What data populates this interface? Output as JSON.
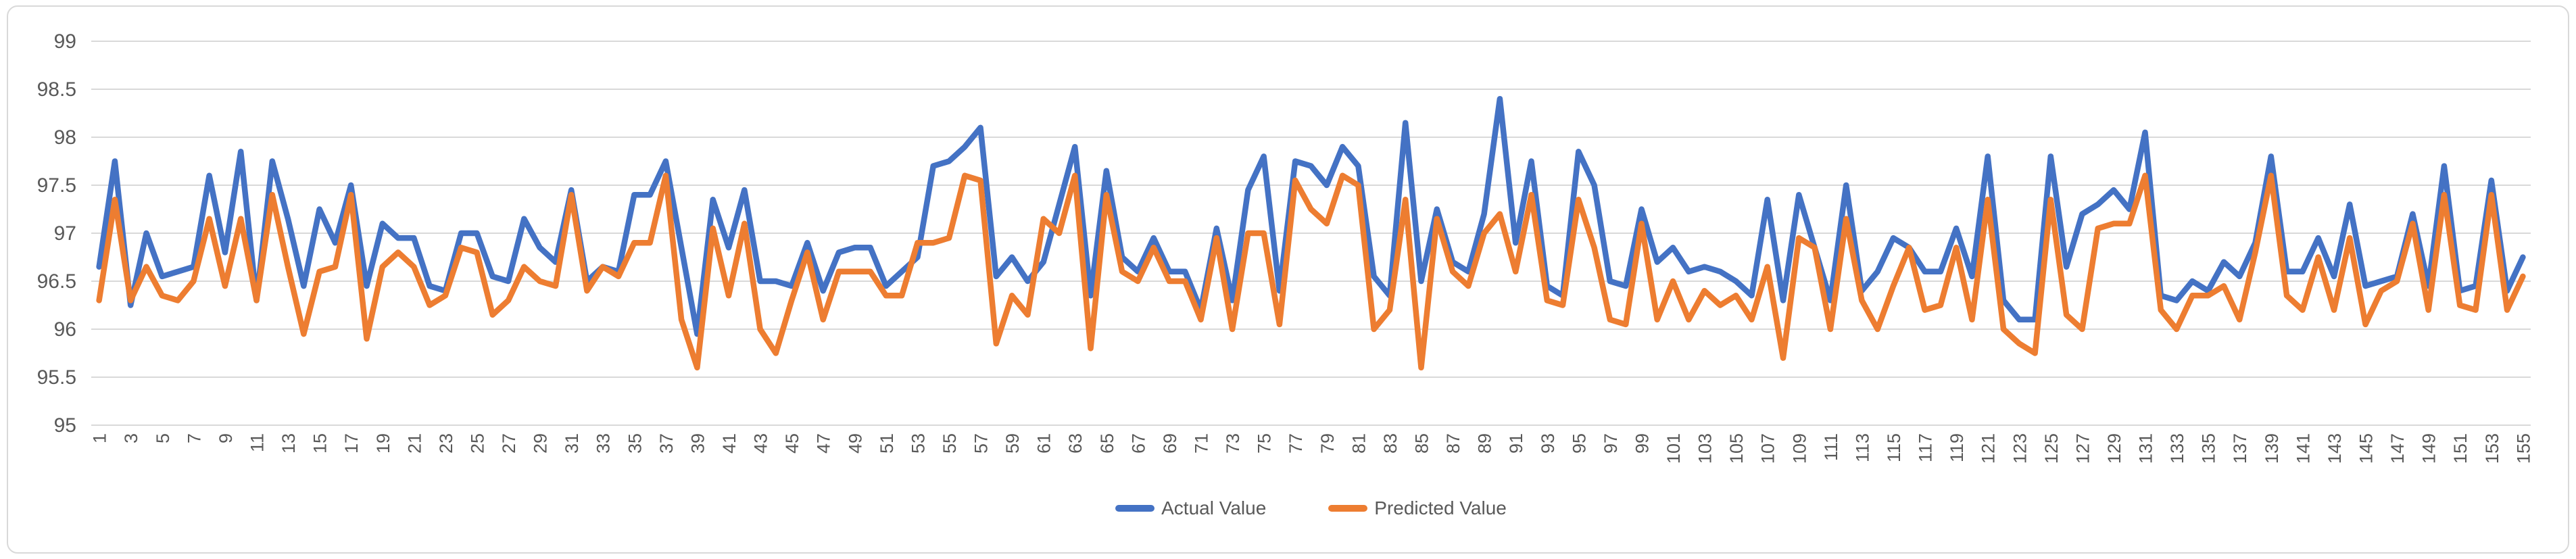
{
  "chart_data": {
    "type": "line",
    "title": "",
    "xlabel": "",
    "ylabel": "",
    "ylim": [
      95,
      99
    ],
    "y_tick_step": 0.5,
    "y_ticks": [
      "99",
      "98.5",
      "98",
      "97.5",
      "97",
      "96.5",
      "96",
      "95.5",
      "95"
    ],
    "x_count": 155,
    "x_tick_labels": [
      1,
      3,
      5,
      7,
      9,
      11,
      13,
      15,
      17,
      19,
      21,
      23,
      25,
      27,
      29,
      31,
      33,
      35,
      37,
      39,
      41,
      43,
      45,
      47,
      49,
      51,
      53,
      55,
      57,
      59,
      61,
      63,
      65,
      67,
      69,
      71,
      73,
      75,
      77,
      79,
      81,
      83,
      85,
      87,
      89,
      91,
      93,
      95,
      97,
      99,
      101,
      103,
      105,
      107,
      109,
      111,
      113,
      115,
      117,
      119,
      121,
      123,
      125,
      127,
      129,
      131,
      133,
      135,
      137,
      139,
      141,
      143,
      145,
      147,
      149,
      151,
      153,
      155
    ],
    "grid": true,
    "legend_position": "bottom-center",
    "series": [
      {
        "name": "Actual Value",
        "color": "#4472C4",
        "values": [
          96.65,
          97.75,
          96.25,
          97.0,
          96.55,
          96.6,
          96.65,
          97.6,
          96.8,
          97.85,
          96.3,
          97.75,
          97.15,
          96.45,
          97.25,
          96.9,
          97.5,
          96.45,
          97.1,
          96.95,
          96.95,
          96.45,
          96.4,
          97.0,
          97.0,
          96.55,
          96.5,
          97.15,
          96.85,
          96.7,
          97.45,
          96.5,
          96.65,
          96.6,
          97.4,
          97.4,
          97.75,
          96.85,
          95.95,
          97.35,
          96.85,
          97.45,
          96.5,
          96.5,
          96.45,
          96.9,
          96.4,
          96.8,
          96.85,
          96.85,
          96.45,
          96.6,
          96.75,
          97.7,
          97.75,
          97.9,
          98.1,
          96.55,
          96.75,
          96.5,
          96.7,
          97.3,
          97.9,
          96.35,
          97.65,
          96.75,
          96.6,
          96.95,
          96.6,
          96.6,
          96.2,
          97.05,
          96.3,
          97.45,
          97.8,
          96.4,
          97.75,
          97.7,
          97.5,
          97.9,
          97.7,
          96.55,
          96.35,
          98.15,
          96.5,
          97.25,
          96.7,
          96.6,
          97.2,
          98.4,
          96.9,
          97.75,
          96.45,
          96.35,
          97.85,
          97.5,
          96.5,
          96.45,
          97.25,
          96.7,
          96.85,
          96.6,
          96.65,
          96.6,
          96.5,
          96.35,
          97.35,
          96.3,
          97.4,
          96.85,
          96.3,
          97.5,
          96.4,
          96.6,
          96.95,
          96.85,
          96.6,
          96.6,
          97.05,
          96.55,
          97.8,
          96.3,
          96.1,
          96.1,
          97.8,
          96.65,
          97.2,
          97.3,
          97.45,
          97.25,
          98.05,
          96.35,
          96.3,
          96.5,
          96.4,
          96.7,
          96.55,
          96.9,
          97.8,
          96.6,
          96.6,
          96.95,
          96.55,
          97.3,
          96.45,
          96.5,
          96.55,
          97.2,
          96.45,
          97.7,
          96.4,
          96.45,
          97.55,
          96.4,
          96.75
        ]
      },
      {
        "name": "Predicted Value",
        "color": "#ED7D31",
        "values": [
          96.3,
          97.35,
          96.3,
          96.65,
          96.35,
          96.3,
          96.5,
          97.15,
          96.45,
          97.15,
          96.3,
          97.4,
          96.65,
          95.95,
          96.6,
          96.65,
          97.4,
          95.9,
          96.65,
          96.8,
          96.65,
          96.25,
          96.35,
          96.85,
          96.8,
          96.15,
          96.3,
          96.65,
          96.5,
          96.45,
          97.4,
          96.4,
          96.65,
          96.55,
          96.9,
          96.9,
          97.6,
          96.1,
          95.6,
          97.05,
          96.35,
          97.1,
          96.0,
          95.75,
          96.3,
          96.8,
          96.1,
          96.6,
          96.6,
          96.6,
          96.35,
          96.35,
          96.9,
          96.9,
          96.95,
          97.6,
          97.55,
          95.85,
          96.35,
          96.15,
          97.15,
          97.0,
          97.6,
          95.8,
          97.4,
          96.6,
          96.5,
          96.85,
          96.5,
          96.5,
          96.1,
          96.95,
          96.0,
          97.0,
          97.0,
          96.05,
          97.55,
          97.25,
          97.1,
          97.6,
          97.5,
          96.0,
          96.2,
          97.35,
          95.6,
          97.15,
          96.6,
          96.45,
          97.0,
          97.2,
          96.6,
          97.4,
          96.3,
          96.25,
          97.35,
          96.85,
          96.1,
          96.05,
          97.1,
          96.1,
          96.5,
          96.1,
          96.4,
          96.25,
          96.35,
          96.1,
          96.65,
          95.7,
          96.95,
          96.85,
          96.0,
          97.15,
          96.3,
          96.0,
          96.45,
          96.85,
          96.2,
          96.25,
          96.85,
          96.1,
          97.35,
          96.0,
          95.85,
          95.75,
          97.35,
          96.15,
          96.0,
          97.05,
          97.1,
          97.1,
          97.6,
          96.2,
          96.0,
          96.35,
          96.35,
          96.45,
          96.1,
          96.8,
          97.6,
          96.35,
          96.2,
          96.75,
          96.2,
          96.95,
          96.05,
          96.4,
          96.5,
          97.1,
          96.2,
          97.4,
          96.25,
          96.2,
          97.4,
          96.2,
          96.55
        ]
      }
    ]
  },
  "colors": {
    "series_actual": "#4472C4",
    "series_predicted": "#ED7D31",
    "gridline": "#D9D9D9",
    "axis_text": "#595959",
    "border": "#D9D9D9",
    "background": "#FFFFFF"
  }
}
